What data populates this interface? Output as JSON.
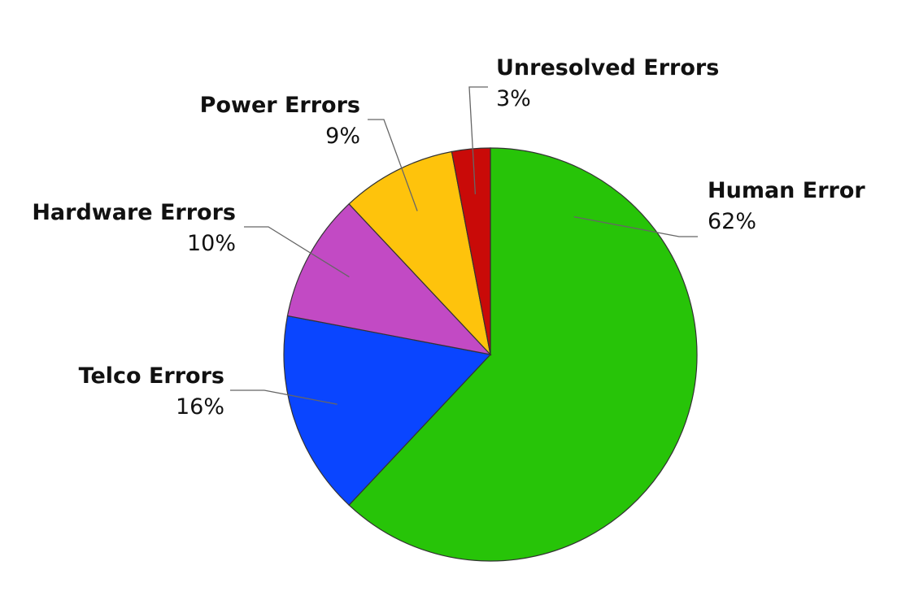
{
  "chart_data": {
    "type": "pie",
    "title": "",
    "legend": "none",
    "slices": [
      {
        "name": "Human Error",
        "value": 62,
        "value_label": "62%",
        "color": "#27C408"
      },
      {
        "name": "Telco Errors",
        "value": 16,
        "value_label": "16%",
        "color": "#0A45FF"
      },
      {
        "name": "Hardware Errors",
        "value": 10,
        "value_label": "10%",
        "color": "#C24AC4"
      },
      {
        "name": "Power Errors",
        "value": 9,
        "value_label": "9%",
        "color": "#FEC30C"
      },
      {
        "name": "Unresolved Errors",
        "value": 3,
        "value_label": "3%",
        "color": "#C90A08"
      }
    ]
  }
}
